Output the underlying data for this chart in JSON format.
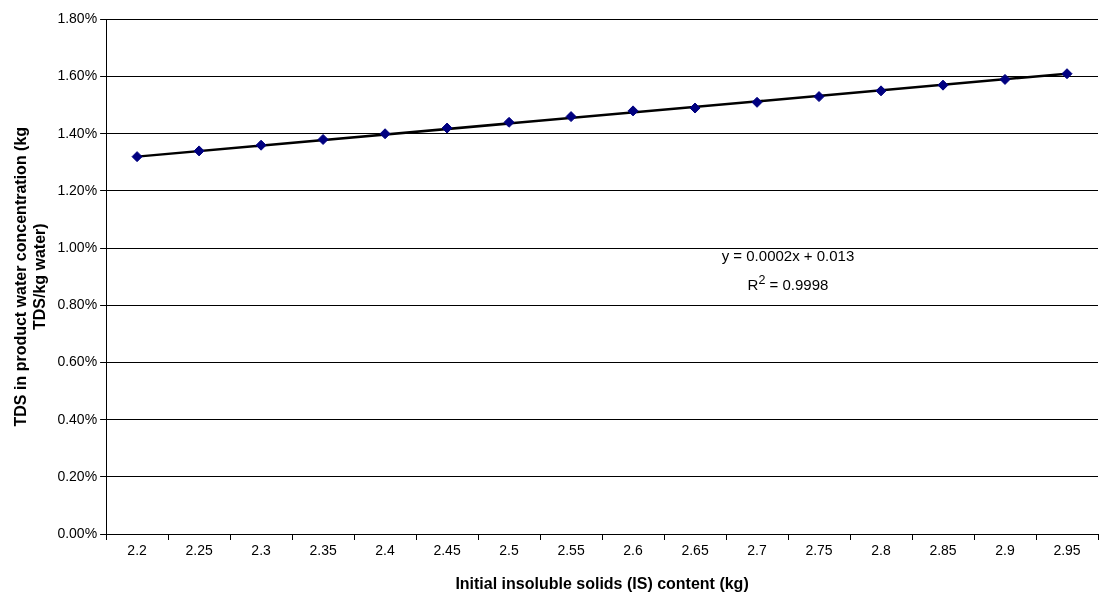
{
  "chart_data": {
    "type": "scatter",
    "xlabel": "Initial insoluble solids (IS) content (kg)",
    "ylabel": "TDS in product water concentration (kg TDS/kg water)",
    "categories": [
      "2.2",
      "2.25",
      "2.3",
      "2.35",
      "2.4",
      "2.45",
      "2.5",
      "2.55",
      "2.6",
      "2.65",
      "2.7",
      "2.75",
      "2.8",
      "2.85",
      "2.9",
      "2.95"
    ],
    "series": [
      {
        "color": "#000080",
        "marker": "diamond",
        "values": [
          1.32,
          1.34,
          1.36,
          1.38,
          1.4,
          1.42,
          1.44,
          1.46,
          1.48,
          1.49,
          1.51,
          1.53,
          1.55,
          1.57,
          1.59,
          1.61
        ]
      },
      {
        "type": "line",
        "color": "#000000",
        "marker": "none",
        "x": [
          "2.2",
          "2.95"
        ],
        "values": [
          1.32,
          1.61
        ]
      }
    ],
    "ylim": [
      0,
      1.8
    ],
    "yticks": [
      {
        "value": 0,
        "label": "0.00%"
      },
      {
        "value": 0.2,
        "label": "0.20%"
      },
      {
        "value": 0.4,
        "label": "0.40%"
      },
      {
        "value": 0.6,
        "label": "0.60%"
      },
      {
        "value": 0.8,
        "label": "0.80%"
      },
      {
        "value": 1.0,
        "label": "1.00%"
      },
      {
        "value": 1.2,
        "label": "1.20%"
      },
      {
        "value": 1.4,
        "label": "1.40%"
      },
      {
        "value": 1.6,
        "label": "1.60%"
      },
      {
        "value": 1.8,
        "label": "1.80%"
      }
    ],
    "grid": "y",
    "legend": false,
    "annotations": [
      "y = 0.0002x + 0.013",
      "R$^{2}$ = 0.9998"
    ]
  }
}
